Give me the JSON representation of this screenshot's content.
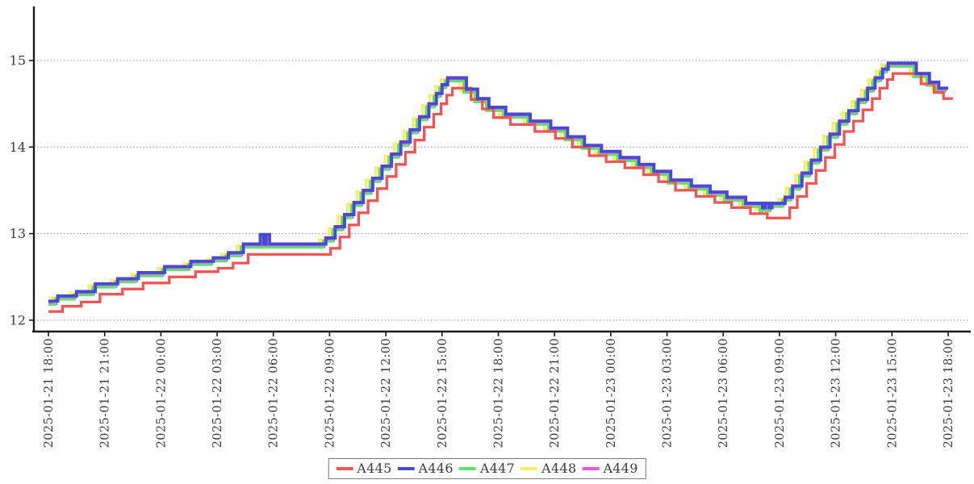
{
  "figure": {
    "background": "#ffffff",
    "axis_color": "#1a1a1a",
    "grid_color": "#999999",
    "tick_label_color": "#3c3c3c"
  },
  "chart_data": {
    "type": "line",
    "step": true,
    "title": "",
    "xlabel": "",
    "ylabel": "",
    "grid": "horizontal dotted",
    "legend_position": "bottom-center",
    "y_ticks": [
      12,
      13,
      14,
      15
    ],
    "ylim": [
      11.85,
      15.62
    ],
    "x_start": "2025-01-21 18:00",
    "x_end": "2025-01-23 18:00",
    "x_tick_hours": [
      0,
      3,
      6,
      9,
      12,
      15,
      18,
      21,
      24,
      27,
      30,
      33,
      36,
      39,
      42,
      45,
      48
    ],
    "x_tick_labels": [
      "2025-01-21 18:00",
      "2025-01-21 21:00",
      "2025-01-22 00:00",
      "2025-01-22 03:00",
      "2025-01-22 06:00",
      "2025-01-22 09:00",
      "2025-01-22 12:00",
      "2025-01-22 15:00",
      "2025-01-22 18:00",
      "2025-01-22 21:00",
      "2025-01-23 00:00",
      "2025-01-23 03:00",
      "2025-01-23 06:00",
      "2025-01-23 09:00",
      "2025-01-23 12:00",
      "2025-01-23 15:00",
      "2025-01-23 18:00"
    ],
    "breakpoint_hours": [
      0,
      0.5,
      1.5,
      2.5,
      3.7,
      4.8,
      6.2,
      7.6,
      8.8,
      9.6,
      10.4,
      11.3,
      11.48,
      11.62,
      11.8,
      14.8,
      15.3,
      15.8,
      16.3,
      16.8,
      17.3,
      17.8,
      18.3,
      18.8,
      19.3,
      19.8,
      20.3,
      20.7,
      21.0,
      21.3,
      22.3,
      22.9,
      23.5,
      24.4,
      25.7,
      26.8,
      27.7,
      28.6,
      29.5,
      30.5,
      31.5,
      32.3,
      33.2,
      34.3,
      35.3,
      36.2,
      37.2,
      38.1,
      38.25,
      38.45,
      38.6,
      39.3,
      39.7,
      40.2,
      40.7,
      41.2,
      41.7,
      42.2,
      42.7,
      43.2,
      43.7,
      44.1,
      44.5,
      44.8,
      46.3,
      47.0,
      47.5,
      48.0
    ],
    "series": [
      {
        "name": "A445",
        "color": "#ee5555",
        "width": 3.3,
        "x_offset_hours": 0.25,
        "z": 4,
        "values": [
          12.1,
          12.16,
          12.21,
          12.3,
          12.36,
          12.43,
          12.5,
          12.56,
          12.6,
          12.66,
          12.76,
          12.76,
          12.76,
          12.76,
          12.76,
          12.83,
          12.96,
          13.1,
          13.24,
          13.38,
          13.52,
          13.66,
          13.8,
          13.94,
          14.08,
          14.23,
          14.38,
          14.5,
          14.6,
          14.68,
          14.55,
          14.44,
          14.34,
          14.26,
          14.18,
          14.1,
          14.0,
          13.9,
          13.83,
          13.76,
          13.68,
          13.6,
          13.5,
          13.43,
          13.36,
          13.3,
          13.23,
          13.18,
          13.18,
          13.18,
          13.18,
          13.3,
          13.43,
          13.58,
          13.73,
          13.88,
          14.03,
          14.18,
          14.3,
          14.43,
          14.56,
          14.68,
          14.78,
          14.85,
          14.73,
          14.63,
          14.56,
          14.56
        ]
      },
      {
        "name": "A446",
        "color": "#4a49d4",
        "width": 3.9,
        "x_offset_hours": 0.0,
        "z": 5,
        "values": [
          12.22,
          12.28,
          12.33,
          12.42,
          12.48,
          12.55,
          12.62,
          12.68,
          12.72,
          12.78,
          12.88,
          12.99,
          12.88,
          12.99,
          12.88,
          12.95,
          13.08,
          13.22,
          13.36,
          13.5,
          13.64,
          13.78,
          13.92,
          14.06,
          14.2,
          14.35,
          14.5,
          14.62,
          14.72,
          14.8,
          14.67,
          14.56,
          14.46,
          14.38,
          14.3,
          14.22,
          14.12,
          14.02,
          13.95,
          13.88,
          13.8,
          13.72,
          13.62,
          13.55,
          13.48,
          13.42,
          13.35,
          13.3,
          13.35,
          13.3,
          13.35,
          13.42,
          13.55,
          13.7,
          13.85,
          14.0,
          14.15,
          14.3,
          14.42,
          14.55,
          14.68,
          14.8,
          14.9,
          14.97,
          14.85,
          14.75,
          14.68,
          14.68
        ]
      },
      {
        "name": "A447",
        "color": "#5ce36a",
        "width": 3.0,
        "x_offset_hours": -0.15,
        "z": 3,
        "values": [
          12.18,
          12.24,
          12.29,
          12.38,
          12.44,
          12.51,
          12.58,
          12.64,
          12.68,
          12.74,
          12.84,
          12.84,
          12.84,
          12.84,
          12.84,
          12.91,
          13.04,
          13.18,
          13.32,
          13.46,
          13.6,
          13.74,
          13.88,
          14.02,
          14.16,
          14.31,
          14.46,
          14.58,
          14.68,
          14.76,
          14.63,
          14.52,
          14.42,
          14.34,
          14.26,
          14.18,
          14.08,
          13.98,
          13.91,
          13.84,
          13.76,
          13.68,
          13.58,
          13.51,
          13.44,
          13.38,
          13.31,
          13.26,
          13.31,
          13.26,
          13.31,
          13.38,
          13.51,
          13.66,
          13.81,
          13.96,
          14.11,
          14.26,
          14.38,
          14.51,
          14.64,
          14.76,
          14.86,
          14.93,
          14.81,
          14.71,
          14.64,
          14.64
        ]
      },
      {
        "name": "A448",
        "color": "#f8ef58",
        "width": 3.0,
        "x_offset_hours": -0.35,
        "z": 1,
        "values": [
          12.2,
          12.26,
          12.31,
          12.4,
          12.46,
          12.53,
          12.6,
          12.66,
          12.7,
          12.76,
          12.86,
          12.86,
          12.86,
          12.86,
          12.86,
          12.93,
          13.06,
          13.2,
          13.34,
          13.48,
          13.62,
          13.76,
          13.9,
          14.04,
          14.18,
          14.33,
          14.48,
          14.6,
          14.7,
          14.78,
          14.65,
          14.54,
          14.44,
          14.36,
          14.28,
          14.2,
          14.1,
          14.0,
          13.93,
          13.86,
          13.78,
          13.7,
          13.6,
          13.53,
          13.46,
          13.4,
          13.33,
          13.28,
          13.33,
          13.28,
          13.33,
          13.4,
          13.53,
          13.68,
          13.83,
          13.98,
          14.13,
          14.28,
          14.4,
          14.53,
          14.66,
          14.78,
          14.88,
          14.95,
          14.83,
          14.73,
          14.66,
          14.66
        ]
      },
      {
        "name": "A449",
        "color": "#f155ec",
        "width": 3.0,
        "x_offset_hours": -0.08,
        "z": 2,
        "values": [
          12.19,
          12.25,
          12.3,
          12.39,
          12.45,
          12.52,
          12.59,
          12.65,
          12.69,
          12.75,
          12.85,
          12.85,
          12.85,
          12.85,
          12.85,
          12.92,
          13.05,
          13.19,
          13.33,
          13.47,
          13.61,
          13.75,
          13.89,
          14.03,
          14.17,
          14.32,
          14.47,
          14.59,
          14.69,
          14.77,
          14.64,
          14.53,
          14.43,
          14.35,
          14.27,
          14.19,
          14.09,
          13.99,
          13.92,
          13.85,
          13.77,
          13.69,
          13.59,
          13.52,
          13.45,
          13.39,
          13.32,
          13.27,
          13.32,
          13.27,
          13.32,
          13.39,
          13.52,
          13.67,
          13.82,
          13.97,
          14.12,
          14.27,
          14.39,
          14.52,
          14.65,
          14.77,
          14.87,
          14.94,
          14.82,
          14.72,
          14.65,
          14.65
        ]
      }
    ]
  }
}
